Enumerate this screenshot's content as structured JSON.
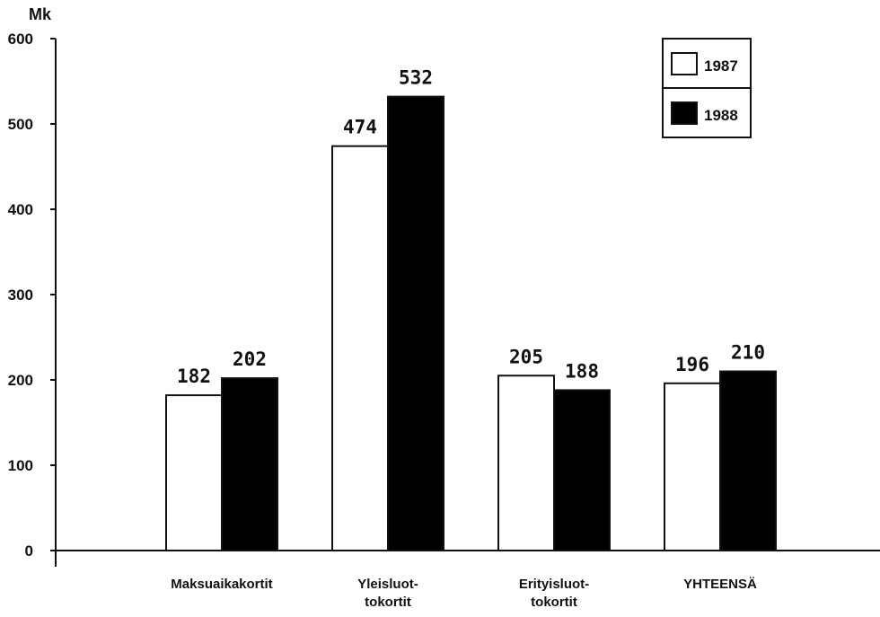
{
  "chart_data": {
    "type": "bar",
    "unit_label": "Mk",
    "categories": [
      [
        "Maksuaikakortit"
      ],
      [
        "Yleisluot-",
        "tokortit"
      ],
      [
        "Erityisluot-",
        "tokortit"
      ],
      [
        "YHTEENSÄ"
      ]
    ],
    "series": [
      {
        "name": "1987",
        "values": [
          182,
          474,
          205,
          196
        ],
        "color": "#ffffff"
      },
      {
        "name": "1988",
        "values": [
          202,
          532,
          188,
          210
        ],
        "color": "#000000"
      }
    ],
    "ylim": [
      0,
      600
    ],
    "yticks": [
      0,
      100,
      200,
      300,
      400,
      500,
      600
    ],
    "legend_position": "top-right",
    "grid": false
  }
}
